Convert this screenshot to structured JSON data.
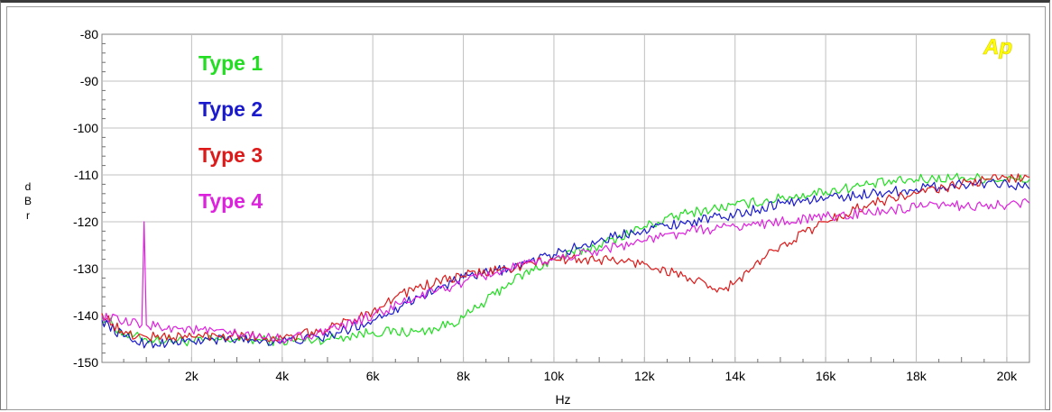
{
  "chart_data": {
    "type": "line",
    "xlabel": "Hz",
    "ylabel": "dBr",
    "ylabel_letters": [
      "d",
      "B",
      "r"
    ],
    "badge": "Ap",
    "xlim": [
      20,
      20500
    ],
    "ylim": [
      -150,
      -80
    ],
    "grid": true,
    "legend_position": "top-left",
    "x_ticks": [
      {
        "value": 2000,
        "label": "2k"
      },
      {
        "value": 4000,
        "label": "4k"
      },
      {
        "value": 6000,
        "label": "6k"
      },
      {
        "value": 8000,
        "label": "8k"
      },
      {
        "value": 10000,
        "label": "10k"
      },
      {
        "value": 12000,
        "label": "12k"
      },
      {
        "value": 14000,
        "label": "14k"
      },
      {
        "value": 16000,
        "label": "16k"
      },
      {
        "value": 18000,
        "label": "18k"
      },
      {
        "value": 20000,
        "label": "20k"
      }
    ],
    "y_ticks": [
      {
        "value": -80,
        "label": "-80"
      },
      {
        "value": -90,
        "label": "-90"
      },
      {
        "value": -100,
        "label": "-100"
      },
      {
        "value": -110,
        "label": "-110"
      },
      {
        "value": -120,
        "label": "-120"
      },
      {
        "value": -130,
        "label": "-130"
      },
      {
        "value": -140,
        "label": "-140"
      },
      {
        "value": -150,
        "label": "-150"
      }
    ],
    "series": [
      {
        "name": "Type 1",
        "color": "#22dd22",
        "points": [
          [
            20,
            -140
          ],
          [
            500,
            -144
          ],
          [
            1000,
            -145
          ],
          [
            2000,
            -145.5
          ],
          [
            3000,
            -145
          ],
          [
            4000,
            -145.5
          ],
          [
            5000,
            -145
          ],
          [
            6000,
            -143.5
          ],
          [
            7000,
            -143.5
          ],
          [
            7500,
            -142.5
          ],
          [
            8000,
            -140.5
          ],
          [
            8500,
            -137
          ],
          [
            9000,
            -133
          ],
          [
            10000,
            -128
          ],
          [
            11000,
            -125
          ],
          [
            12000,
            -121
          ],
          [
            13000,
            -118
          ],
          [
            14000,
            -116.5
          ],
          [
            15000,
            -115
          ],
          [
            16000,
            -113.5
          ],
          [
            17000,
            -112
          ],
          [
            18000,
            -111
          ],
          [
            19000,
            -110.5
          ],
          [
            20000,
            -111
          ],
          [
            20500,
            -111
          ]
        ]
      },
      {
        "name": "Type 2",
        "color": "#1a1acc",
        "points": [
          [
            20,
            -141
          ],
          [
            500,
            -144.5
          ],
          [
            1000,
            -146
          ],
          [
            2000,
            -145.5
          ],
          [
            3000,
            -145
          ],
          [
            4000,
            -145.5
          ],
          [
            5000,
            -144.5
          ],
          [
            6000,
            -141
          ],
          [
            7000,
            -136
          ],
          [
            8000,
            -132
          ],
          [
            9000,
            -130
          ],
          [
            10000,
            -127
          ],
          [
            11000,
            -124
          ],
          [
            12000,
            -121.5
          ],
          [
            13000,
            -120
          ],
          [
            14000,
            -118.5
          ],
          [
            15000,
            -116
          ],
          [
            16000,
            -115
          ],
          [
            17000,
            -114
          ],
          [
            18000,
            -113
          ],
          [
            19000,
            -112
          ],
          [
            20000,
            -111.5
          ],
          [
            20500,
            -113
          ]
        ]
      },
      {
        "name": "Type 3",
        "color": "#dd1a1a",
        "points": [
          [
            20,
            -139.5
          ],
          [
            500,
            -144
          ],
          [
            1000,
            -144.5
          ],
          [
            2000,
            -144.5
          ],
          [
            3000,
            -144
          ],
          [
            4000,
            -145
          ],
          [
            5000,
            -143
          ],
          [
            6000,
            -139
          ],
          [
            6500,
            -136
          ],
          [
            7000,
            -134
          ],
          [
            8000,
            -131.5
          ],
          [
            9000,
            -130
          ],
          [
            10000,
            -128
          ],
          [
            11000,
            -128
          ],
          [
            12000,
            -129
          ],
          [
            13000,
            -132
          ],
          [
            13600,
            -135
          ],
          [
            14000,
            -133
          ],
          [
            15000,
            -125
          ],
          [
            16000,
            -120
          ],
          [
            17000,
            -116
          ],
          [
            18000,
            -114
          ],
          [
            19000,
            -112
          ],
          [
            20000,
            -110.5
          ],
          [
            20500,
            -110.5
          ]
        ]
      },
      {
        "name": "Type 4",
        "color": "#dd22dd",
        "points": [
          [
            20,
            -140
          ],
          [
            500,
            -141.5
          ],
          [
            900,
            -142
          ],
          [
            950,
            -120
          ],
          [
            1000,
            -142
          ],
          [
            2000,
            -143
          ],
          [
            3000,
            -144
          ],
          [
            4000,
            -145
          ],
          [
            5000,
            -143.5
          ],
          [
            6000,
            -140
          ],
          [
            7000,
            -136
          ],
          [
            8000,
            -133
          ],
          [
            9000,
            -130
          ],
          [
            10000,
            -128
          ],
          [
            11000,
            -126
          ],
          [
            12000,
            -124
          ],
          [
            13000,
            -122
          ],
          [
            14000,
            -121
          ],
          [
            15000,
            -120
          ],
          [
            16000,
            -119
          ],
          [
            17000,
            -118
          ],
          [
            18000,
            -117
          ],
          [
            19000,
            -116.5
          ],
          [
            20000,
            -116.5
          ],
          [
            20500,
            -116
          ]
        ]
      }
    ]
  }
}
